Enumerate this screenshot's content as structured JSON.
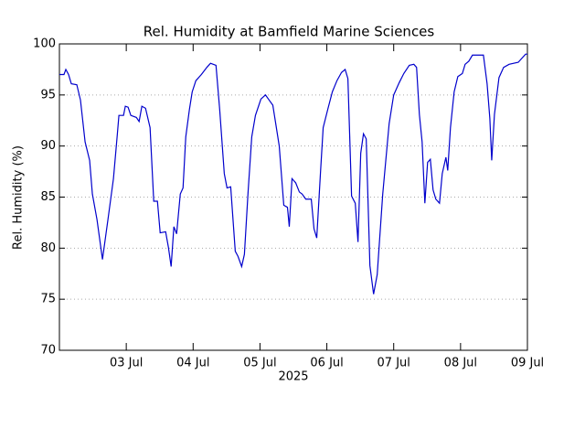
{
  "chart_data": {
    "type": "line",
    "title": "Rel. Humidity at Bamfield Marine Sciences",
    "ylabel": "Rel. Humidity (%)",
    "xlabel": "2025",
    "xlim": [
      0,
      7
    ],
    "ylim": [
      70,
      100
    ],
    "yticks": [
      70,
      75,
      80,
      85,
      90,
      95,
      100
    ],
    "xticks": [
      {
        "value": 1,
        "label": "03 Jul"
      },
      {
        "value": 2,
        "label": "04 Jul"
      },
      {
        "value": 3,
        "label": "05 Jul"
      },
      {
        "value": 4,
        "label": "06 Jul"
      },
      {
        "value": 5,
        "label": "07 Jul"
      },
      {
        "value": 6,
        "label": "08 Jul"
      },
      {
        "value": 7,
        "label": "09 Jul"
      }
    ],
    "grid": true,
    "series": [
      {
        "color": "#0000cc",
        "x": [
          0,
          0.068,
          0.096,
          0.137,
          0.178,
          0.26,
          0.315,
          0.384,
          0.452,
          0.493,
          0.562,
          0.644,
          0.726,
          0.808,
          0.863,
          0.89,
          0.959,
          0.986,
          1.027,
          1.068,
          1.151,
          1.192,
          1.233,
          1.288,
          1.356,
          1.411,
          1.466,
          1.507,
          1.589,
          1.63,
          1.671,
          1.712,
          1.753,
          1.808,
          1.849,
          1.89,
          1.945,
          1.986,
          2.041,
          2.123,
          2.205,
          2.26,
          2.342,
          2.397,
          2.466,
          2.507,
          2.562,
          2.63,
          2.671,
          2.726,
          2.767,
          2.822,
          2.877,
          2.932,
          3.014,
          3.082,
          3.137,
          3.192,
          3.233,
          3.288,
          3.356,
          3.411,
          3.438,
          3.479,
          3.534,
          3.589,
          3.63,
          3.685,
          3.767,
          3.808,
          3.849,
          3.904,
          3.945,
          4.014,
          4.082,
          4.151,
          4.219,
          4.274,
          4.315,
          4.37,
          4.425,
          4.466,
          4.507,
          4.548,
          4.589,
          4.644,
          4.699,
          4.753,
          4.836,
          4.932,
          5,
          5.082,
          5.151,
          5.233,
          5.301,
          5.342,
          5.384,
          5.425,
          5.466,
          5.507,
          5.548,
          5.589,
          5.63,
          5.685,
          5.726,
          5.781,
          5.808,
          5.849,
          5.904,
          5.959,
          6.027,
          6.068,
          6.123,
          6.178,
          6.342,
          6.397,
          6.438,
          6.466,
          6.507,
          6.575,
          6.644,
          6.726,
          6.863,
          6.932,
          6.973,
          7
        ],
        "values": [
          97.0,
          97.0,
          97.5,
          97.0,
          96.1,
          96.0,
          94.5,
          90.4,
          88.6,
          85.3,
          82.8,
          78.9,
          82.8,
          86.8,
          90.9,
          93.0,
          93.0,
          93.9,
          93.8,
          93.0,
          92.8,
          92.4,
          93.9,
          93.7,
          91.8,
          84.6,
          84.6,
          81.5,
          81.6,
          80.1,
          78.2,
          82.1,
          81.4,
          85.3,
          85.9,
          90.9,
          93.6,
          95.3,
          96.4,
          97.0,
          97.7,
          98.1,
          97.9,
          93.6,
          87.3,
          85.9,
          86.0,
          79.7,
          79.2,
          78.2,
          79.4,
          85.5,
          90.9,
          93.0,
          94.6,
          95.0,
          94.5,
          94.0,
          92.3,
          90.0,
          84.2,
          84.0,
          82.1,
          86.8,
          86.4,
          85.5,
          85.3,
          84.8,
          84.8,
          81.9,
          81.0,
          87.3,
          91.8,
          93.6,
          95.3,
          96.4,
          97.2,
          97.5,
          96.6,
          85.1,
          84.4,
          80.6,
          89.3,
          91.2,
          90.7,
          78.3,
          75.5,
          77.4,
          85.3,
          92.2,
          95.0,
          96.2,
          97.1,
          97.9,
          98.0,
          97.7,
          93.1,
          90.4,
          84.4,
          88.4,
          88.7,
          85.7,
          84.8,
          84.4,
          87.3,
          88.9,
          87.6,
          91.8,
          95.3,
          96.8,
          97.1,
          98.0,
          98.3,
          98.9,
          98.9,
          96.1,
          92.7,
          88.6,
          93.1,
          96.7,
          97.7,
          98.0,
          98.2,
          98.7,
          99.0,
          99.0
        ]
      }
    ]
  }
}
